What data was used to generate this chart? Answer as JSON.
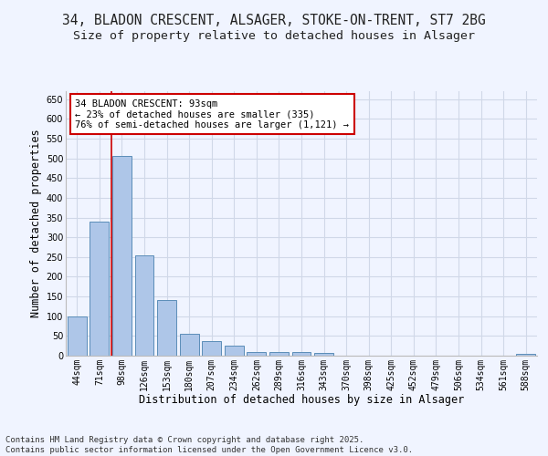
{
  "title_line1": "34, BLADON CRESCENT, ALSAGER, STOKE-ON-TRENT, ST7 2BG",
  "title_line2": "Size of property relative to detached houses in Alsager",
  "xlabel": "Distribution of detached houses by size in Alsager",
  "ylabel": "Number of detached properties",
  "categories": [
    "44sqm",
    "71sqm",
    "98sqm",
    "126sqm",
    "153sqm",
    "180sqm",
    "207sqm",
    "234sqm",
    "262sqm",
    "289sqm",
    "316sqm",
    "343sqm",
    "370sqm",
    "398sqm",
    "425sqm",
    "452sqm",
    "479sqm",
    "506sqm",
    "534sqm",
    "561sqm",
    "588sqm"
  ],
  "values": [
    100,
    340,
    507,
    255,
    140,
    55,
    38,
    25,
    10,
    10,
    10,
    7,
    0,
    0,
    0,
    0,
    0,
    0,
    0,
    0,
    5
  ],
  "bar_color": "#aec6e8",
  "bar_edge_color": "#5b8db8",
  "grid_color": "#d0d8e8",
  "bg_color": "#f0f4ff",
  "annotation_line1": "34 BLADON CRESCENT: 93sqm",
  "annotation_line2": "← 23% of detached houses are smaller (335)",
  "annotation_line3": "76% of semi-detached houses are larger (1,121) →",
  "annotation_box_color": "#ffffff",
  "annotation_box_edge": "#cc0000",
  "red_line_x": 1.55,
  "ylim": [
    0,
    670
  ],
  "yticks": [
    0,
    50,
    100,
    150,
    200,
    250,
    300,
    350,
    400,
    450,
    500,
    550,
    600,
    650
  ],
  "footer_line1": "Contains HM Land Registry data © Crown copyright and database right 2025.",
  "footer_line2": "Contains public sector information licensed under the Open Government Licence v3.0.",
  "title_fontsize": 10.5,
  "subtitle_fontsize": 9.5,
  "axis_label_fontsize": 8.5,
  "tick_fontsize": 7,
  "annotation_fontsize": 7.5,
  "footer_fontsize": 6.5
}
